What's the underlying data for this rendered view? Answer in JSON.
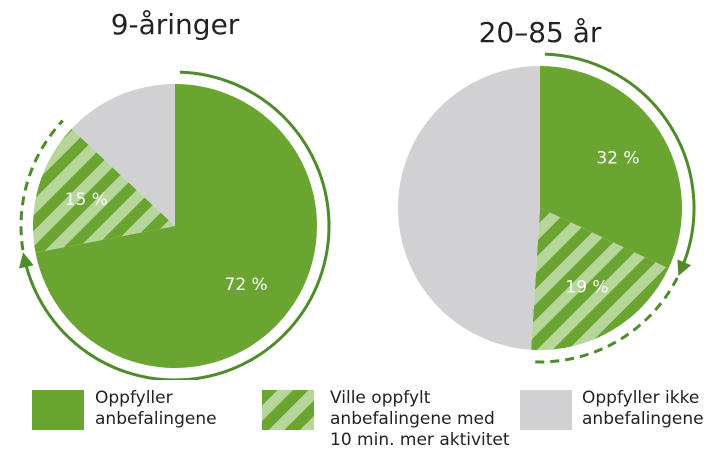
{
  "chart_data": [
    {
      "type": "pie",
      "title": "9-åringer",
      "categories": [
        "Oppfyller anbefalingene",
        "Ville oppfylt anbefalingene med 10 min. mer aktivitet",
        "Oppfyller ikke anbefalingene"
      ],
      "values": [
        72,
        15,
        13
      ],
      "value_labels": [
        "72 %",
        "15 %",
        null
      ],
      "colors": [
        "#6aa532",
        "hatch",
        "#d1d1d3"
      ]
    },
    {
      "type": "pie",
      "title": "20–85 år",
      "categories": [
        "Oppfyller anbefalingene",
        "Ville oppfylt anbefalingene med 10 min. mer aktivitet",
        "Oppfyller ikke anbefalingene"
      ],
      "values": [
        32,
        19,
        49
      ],
      "value_labels": [
        "32 %",
        "19 %",
        null
      ],
      "colors": [
        "#6aa532",
        "hatch",
        "#d1d1d3"
      ]
    }
  ]
}
